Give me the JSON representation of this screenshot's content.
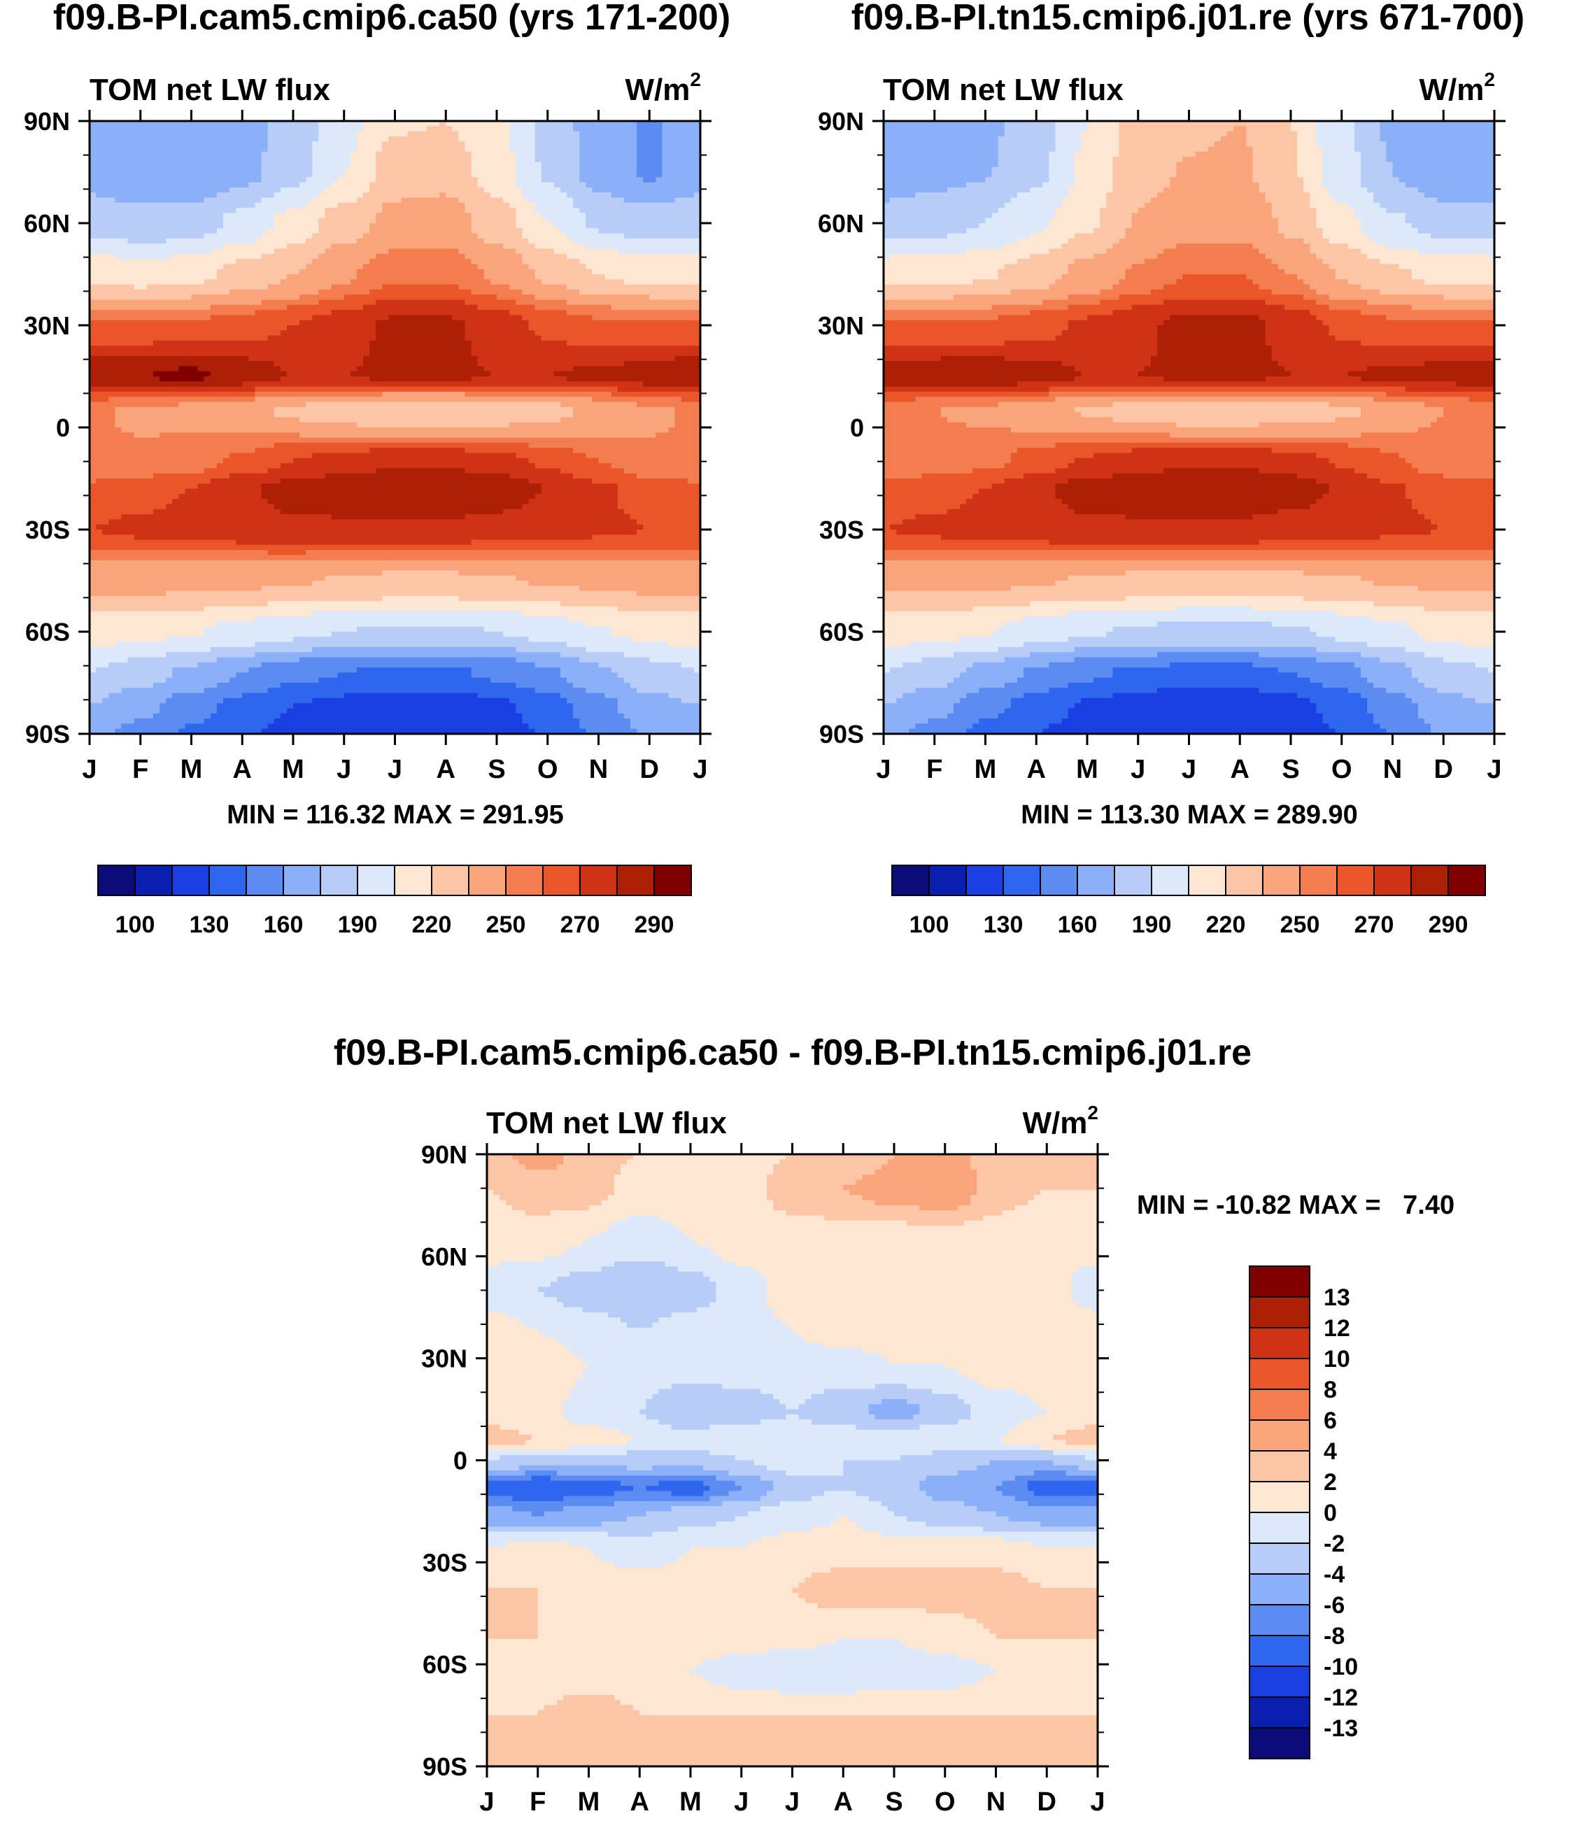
{
  "chart_data": [
    {
      "type": "heatmap",
      "panel": "left",
      "title": "f09.B-PI.cam5.cmip6.ca50 (yrs 171-200)",
      "subtitle_left": "TOM net LW flux",
      "units": "W/m",
      "units_sup": "2",
      "x_ticks": [
        "J",
        "F",
        "M",
        "A",
        "M",
        "J",
        "J",
        "A",
        "S",
        "O",
        "N",
        "D",
        "J"
      ],
      "y_ticks": [
        "90N",
        "60N",
        "30N",
        "0",
        "30S",
        "60S",
        "90S"
      ],
      "ylim": [
        -90,
        90
      ],
      "stats": "MIN = 116.32 MAX = 291.95",
      "colorbar_labels": [
        "100",
        "130",
        "160",
        "190",
        "220",
        "250",
        "270",
        "290"
      ],
      "colorbar_colors": [
        "#0b0b7a",
        "#0a1fb0",
        "#1a3fe0",
        "#2f66ee",
        "#5a8cf2",
        "#8cb0f7",
        "#b7cdf8",
        "#dce9fb",
        "#fde6d2",
        "#fcc6a6",
        "#f9a47a",
        "#f47d4f",
        "#e9562a",
        "#cf3214",
        "#ae2006",
        "#800000"
      ],
      "rows": [
        {
          "lat": 90,
          "profile": [
            170,
            165,
            160,
            168,
            180,
            200,
            218,
            220,
            208,
            185,
            168,
            158,
            170
          ]
        },
        {
          "lat": 75,
          "profile": [
            168,
            163,
            160,
            170,
            185,
            205,
            228,
            230,
            212,
            188,
            168,
            158,
            168
          ]
        },
        {
          "lat": 60,
          "profile": [
            185,
            180,
            182,
            195,
            210,
            228,
            240,
            242,
            228,
            205,
            188,
            182,
            185
          ]
        },
        {
          "lat": 45,
          "profile": [
            215,
            212,
            215,
            225,
            235,
            248,
            258,
            258,
            248,
            232,
            220,
            215,
            215
          ]
        },
        {
          "lat": 30,
          "profile": [
            262,
            262,
            262,
            265,
            270,
            276,
            282,
            282,
            276,
            268,
            262,
            262,
            262
          ]
        },
        {
          "lat": 15,
          "profile": [
            288,
            290,
            292,
            286,
            280,
            280,
            282,
            282,
            280,
            280,
            282,
            285,
            290
          ]
        },
        {
          "lat": 5,
          "profile": [
            252,
            248,
            246,
            240,
            232,
            226,
            222,
            222,
            225,
            230,
            240,
            248,
            252
          ]
        },
        {
          "lat": -10,
          "profile": [
            250,
            252,
            255,
            262,
            270,
            275,
            278,
            278,
            274,
            268,
            260,
            252,
            250
          ]
        },
        {
          "lat": -18,
          "profile": [
            262,
            266,
            270,
            278,
            284,
            287,
            289,
            289,
            286,
            280,
            272,
            265,
            262
          ]
        },
        {
          "lat": -30,
          "profile": [
            270,
            272,
            274,
            276,
            278,
            278,
            278,
            278,
            276,
            274,
            272,
            270,
            270
          ]
        },
        {
          "lat": -45,
          "profile": [
            240,
            240,
            240,
            238,
            236,
            234,
            232,
            232,
            234,
            236,
            238,
            240,
            240
          ]
        },
        {
          "lat": -60,
          "profile": [
            212,
            210,
            206,
            200,
            194,
            190,
            188,
            188,
            190,
            196,
            204,
            210,
            212
          ]
        },
        {
          "lat": -72,
          "profile": [
            190,
            182,
            172,
            160,
            150,
            145,
            142,
            142,
            148,
            158,
            172,
            184,
            190
          ]
        },
        {
          "lat": -82,
          "profile": [
            175,
            165,
            152,
            140,
            130,
            125,
            120,
            120,
            126,
            138,
            155,
            170,
            175
          ]
        },
        {
          "lat": -90,
          "profile": [
            165,
            155,
            142,
            132,
            124,
            120,
            118,
            118,
            122,
            132,
            148,
            162,
            165
          ]
        }
      ]
    },
    {
      "type": "heatmap",
      "panel": "right",
      "title": "f09.B-PI.tn15.cmip6.j01.re (yrs 671-700)",
      "subtitle_left": "TOM net LW flux",
      "units": "W/m",
      "units_sup": "2",
      "x_ticks": [
        "J",
        "F",
        "M",
        "A",
        "M",
        "J",
        "J",
        "A",
        "S",
        "O",
        "N",
        "D",
        "J"
      ],
      "y_ticks": [
        "90N",
        "60N",
        "30N",
        "0",
        "30S",
        "60S",
        "90S"
      ],
      "ylim": [
        -90,
        90
      ],
      "stats": "MIN = 113.30 MAX = 289.90",
      "colorbar_labels": [
        "100",
        "130",
        "160",
        "190",
        "220",
        "250",
        "270",
        "290"
      ],
      "colorbar_colors": [
        "#0b0b7a",
        "#0a1fb0",
        "#1a3fe0",
        "#2f66ee",
        "#5a8cf2",
        "#8cb0f7",
        "#b7cdf8",
        "#dce9fb",
        "#fde6d2",
        "#fcc6a6",
        "#f9a47a",
        "#f47d4f",
        "#e9562a",
        "#cf3214",
        "#ae2006",
        "#800000"
      ],
      "rows": [
        {
          "lat": 90,
          "profile": [
            160,
            168,
            172,
            182,
            205,
            225,
            232,
            235,
            220,
            192,
            172,
            160,
            160
          ]
        },
        {
          "lat": 75,
          "profile": [
            165,
            170,
            174,
            186,
            208,
            230,
            236,
            238,
            222,
            196,
            175,
            163,
            165
          ]
        },
        {
          "lat": 60,
          "profile": [
            182,
            185,
            190,
            202,
            218,
            236,
            245,
            246,
            232,
            210,
            192,
            183,
            182
          ]
        },
        {
          "lat": 45,
          "profile": [
            214,
            214,
            218,
            228,
            240,
            252,
            260,
            260,
            250,
            234,
            222,
            215,
            214
          ]
        },
        {
          "lat": 30,
          "profile": [
            262,
            262,
            262,
            266,
            272,
            278,
            283,
            283,
            277,
            268,
            262,
            262,
            262
          ]
        },
        {
          "lat": 15,
          "profile": [
            286,
            287,
            288,
            284,
            280,
            280,
            282,
            282,
            280,
            280,
            282,
            284,
            287
          ]
        },
        {
          "lat": 5,
          "profile": [
            254,
            250,
            248,
            242,
            234,
            228,
            224,
            224,
            227,
            232,
            242,
            250,
            254
          ]
        },
        {
          "lat": -10,
          "profile": [
            252,
            254,
            257,
            264,
            271,
            276,
            278,
            278,
            275,
            269,
            261,
            254,
            252
          ]
        },
        {
          "lat": -18,
          "profile": [
            262,
            266,
            270,
            278,
            284,
            287,
            288,
            288,
            285,
            279,
            271,
            265,
            262
          ]
        },
        {
          "lat": -30,
          "profile": [
            270,
            272,
            274,
            276,
            278,
            278,
            278,
            278,
            276,
            274,
            272,
            270,
            270
          ]
        },
        {
          "lat": -45,
          "profile": [
            238,
            238,
            238,
            236,
            234,
            232,
            230,
            230,
            232,
            234,
            236,
            238,
            238
          ]
        },
        {
          "lat": -60,
          "profile": [
            212,
            210,
            206,
            198,
            192,
            188,
            186,
            186,
            188,
            194,
            202,
            210,
            212
          ]
        },
        {
          "lat": -72,
          "profile": [
            190,
            182,
            170,
            158,
            148,
            142,
            140,
            140,
            145,
            155,
            170,
            184,
            190
          ]
        },
        {
          "lat": -82,
          "profile": [
            175,
            165,
            150,
            138,
            128,
            122,
            118,
            118,
            124,
            136,
            152,
            170,
            175
          ]
        },
        {
          "lat": -90,
          "profile": [
            165,
            155,
            140,
            130,
            122,
            118,
            115,
            115,
            120,
            130,
            146,
            162,
            165
          ]
        }
      ]
    },
    {
      "type": "heatmap",
      "panel": "difference",
      "title": "f09.B-PI.cam5.cmip6.ca50 - f09.B-PI.tn15.cmip6.j01.re",
      "subtitle_left": "TOM net LW flux",
      "units": "W/m",
      "units_sup": "2",
      "x_ticks": [
        "J",
        "F",
        "M",
        "A",
        "M",
        "J",
        "J",
        "A",
        "S",
        "O",
        "N",
        "D",
        "J"
      ],
      "y_ticks": [
        "90N",
        "60N",
        "30N",
        "0",
        "30S",
        "60S",
        "90S"
      ],
      "ylim": [
        -90,
        90
      ],
      "stats": "MIN = -10.82 MAX =   7.40",
      "colorbar_labels": [
        "13",
        "12",
        "10",
        "8",
        "6",
        "4",
        "2",
        "0",
        "-2",
        "-4",
        "-6",
        "-8",
        "-10",
        "-12",
        "-13"
      ],
      "colorbar_colors": [
        "#800000",
        "#ae2006",
        "#cf3214",
        "#e9562a",
        "#f47d4f",
        "#f9a47a",
        "#fcc6a6",
        "#fde6d2",
        "#dce9fb",
        "#b7cdf8",
        "#8cb0f7",
        "#5a8cf2",
        "#2f66ee",
        "#1a3fe0",
        "#0a1fb0",
        "#0b0b7a"
      ],
      "rows": [
        {
          "lat": 90,
          "profile": [
            3,
            5,
            3,
            2,
            1,
            1,
            2,
            2,
            4,
            5,
            3,
            3,
            3
          ]
        },
        {
          "lat": 80,
          "profile": [
            2,
            3,
            3,
            1,
            1,
            1,
            3,
            4,
            5,
            6,
            3,
            2,
            2
          ]
        },
        {
          "lat": 65,
          "profile": [
            1,
            1,
            0,
            -1,
            0,
            1,
            1,
            1,
            1,
            1,
            1,
            0,
            1
          ]
        },
        {
          "lat": 50,
          "profile": [
            -1,
            -2,
            -3,
            -4,
            -3,
            -1,
            1,
            1,
            1,
            1,
            1,
            1,
            -1
          ]
        },
        {
          "lat": 38,
          "profile": [
            1,
            0,
            -1,
            -2,
            -1,
            -1,
            0,
            1,
            1,
            1,
            1,
            1,
            1
          ]
        },
        {
          "lat": 28,
          "profile": [
            2,
            2,
            0,
            -1,
            -1,
            -1,
            -1,
            -1,
            0,
            0,
            1,
            1,
            2
          ]
        },
        {
          "lat": 14,
          "profile": [
            1,
            1,
            -1,
            -2,
            -4,
            -3,
            -2,
            -3,
            -5,
            -3,
            -1,
            0,
            1
          ]
        },
        {
          "lat": 6,
          "profile": [
            3,
            2,
            1,
            0,
            -1,
            0,
            -1,
            -1,
            -1,
            0,
            0,
            2,
            3
          ]
        },
        {
          "lat": 0,
          "profile": [
            -2,
            -3,
            -3,
            -3,
            -3,
            -2,
            -1,
            -2,
            -2,
            -3,
            -4,
            -4,
            -2
          ]
        },
        {
          "lat": -8,
          "profile": [
            -9,
            -10,
            -9,
            -8,
            -9,
            -6,
            -3,
            -2,
            -3,
            -5,
            -6,
            -9,
            -9
          ]
        },
        {
          "lat": -16,
          "profile": [
            -5,
            -6,
            -5,
            -4,
            -3,
            -2,
            -1,
            0,
            -2,
            -3,
            -4,
            -5,
            -5
          ]
        },
        {
          "lat": -26,
          "profile": [
            0,
            1,
            0,
            -1,
            0,
            0,
            1,
            1,
            1,
            1,
            1,
            0,
            0
          ]
        },
        {
          "lat": -38,
          "profile": [
            2,
            2,
            1,
            1,
            1,
            1,
            2,
            3,
            3,
            3,
            3,
            2,
            2
          ]
        },
        {
          "lat": -52,
          "profile": [
            2,
            2,
            2,
            1,
            1,
            1,
            1,
            0,
            0,
            1,
            2,
            2,
            2
          ]
        },
        {
          "lat": -62,
          "profile": [
            1,
            1,
            1,
            1,
            0,
            -1,
            -2,
            -2,
            -1,
            -1,
            0,
            1,
            1
          ]
        },
        {
          "lat": -75,
          "profile": [
            2,
            2,
            3,
            2,
            2,
            2,
            2,
            2,
            2,
            2,
            2,
            2,
            2
          ]
        },
        {
          "lat": -90,
          "profile": [
            2,
            2,
            2,
            2,
            2,
            2,
            2,
            2,
            2,
            2,
            2,
            2,
            2
          ]
        }
      ]
    }
  ]
}
